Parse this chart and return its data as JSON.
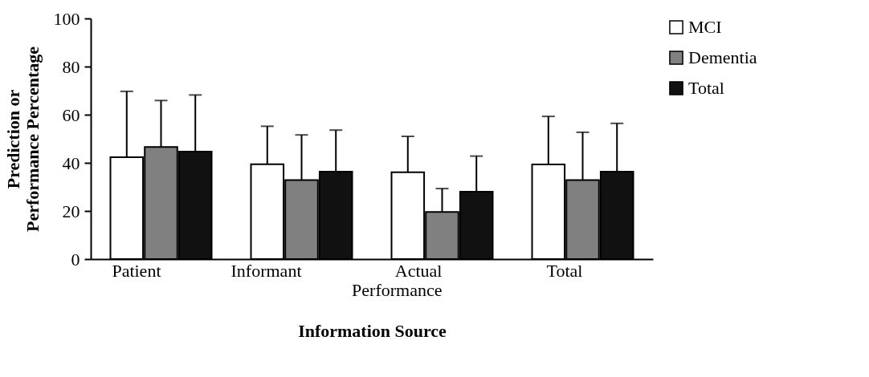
{
  "chart_data": {
    "type": "bar",
    "xlabel": "Information Source",
    "ylabel": "Prediction or Performance Percentage",
    "categories": [
      "Patient",
      "Informant",
      "Actual Performance",
      "Total"
    ],
    "series": [
      {
        "name": "MCI",
        "color": "#ffffff",
        "values": [
          42.3,
          39.4,
          36.1,
          39.3
        ],
        "errors": [
          [
            42.3,
            69.7
          ],
          [
            39.4,
            55.2
          ],
          [
            36.1,
            51.0
          ],
          [
            39.3,
            59.3
          ]
        ]
      },
      {
        "name": "Dementia",
        "color": "#808080",
        "values": [
          46.6,
          32.8,
          19.6,
          32.8
        ],
        "errors": [
          [
            46.6,
            65.9
          ],
          [
            32.8,
            51.6
          ],
          [
            19.6,
            29.3
          ],
          [
            32.8,
            52.7
          ]
        ]
      },
      {
        "name": "Total",
        "color": "#111111",
        "values": [
          44.7,
          36.3,
          28.0,
          36.3
        ],
        "errors": [
          [
            44.7,
            68.2
          ],
          [
            36.3,
            53.6
          ],
          [
            28.0,
            42.8
          ],
          [
            36.3,
            56.4
          ]
        ]
      }
    ],
    "ylim": [
      0,
      100
    ],
    "yticks": [
      0,
      20,
      40,
      60,
      80,
      100
    ],
    "grid": false,
    "legend": "right"
  }
}
